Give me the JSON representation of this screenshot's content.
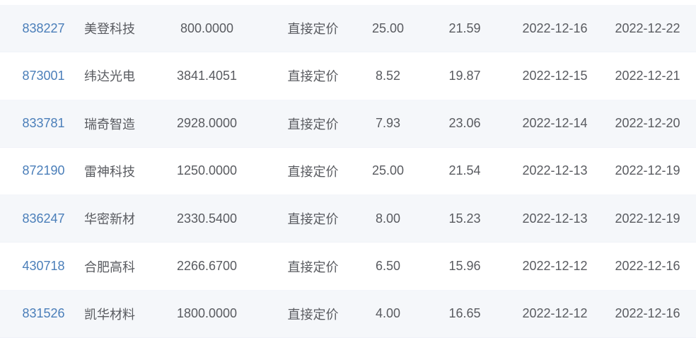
{
  "colors": {
    "link_blue": "#4a7eb9",
    "row_stripe": "#f5f7fa",
    "body_text": "#595b60"
  },
  "table": {
    "rows": [
      {
        "code": "838227",
        "name": "美登科技",
        "amount": "800.0000",
        "pricing_method": "直接定价",
        "price": "25.00",
        "pe": "21.59",
        "date1": "2022-12-16",
        "date2": "2022-12-22"
      },
      {
        "code": "873001",
        "name": "纬达光电",
        "amount": "3841.4051",
        "pricing_method": "直接定价",
        "price": "8.52",
        "pe": "19.87",
        "date1": "2022-12-15",
        "date2": "2022-12-21"
      },
      {
        "code": "833781",
        "name": "瑞奇智造",
        "amount": "2928.0000",
        "pricing_method": "直接定价",
        "price": "7.93",
        "pe": "23.06",
        "date1": "2022-12-14",
        "date2": "2022-12-20"
      },
      {
        "code": "872190",
        "name": "雷神科技",
        "amount": "1250.0000",
        "pricing_method": "直接定价",
        "price": "25.00",
        "pe": "21.54",
        "date1": "2022-12-13",
        "date2": "2022-12-19"
      },
      {
        "code": "836247",
        "name": "华密新材",
        "amount": "2330.5400",
        "pricing_method": "直接定价",
        "price": "8.00",
        "pe": "15.23",
        "date1": "2022-12-13",
        "date2": "2022-12-19"
      },
      {
        "code": "430718",
        "name": "合肥高科",
        "amount": "2266.6700",
        "pricing_method": "直接定价",
        "price": "6.50",
        "pe": "15.96",
        "date1": "2022-12-12",
        "date2": "2022-12-16"
      },
      {
        "code": "831526",
        "name": "凯华材料",
        "amount": "1800.0000",
        "pricing_method": "直接定价",
        "price": "4.00",
        "pe": "16.65",
        "date1": "2022-12-12",
        "date2": "2022-12-16"
      }
    ]
  }
}
